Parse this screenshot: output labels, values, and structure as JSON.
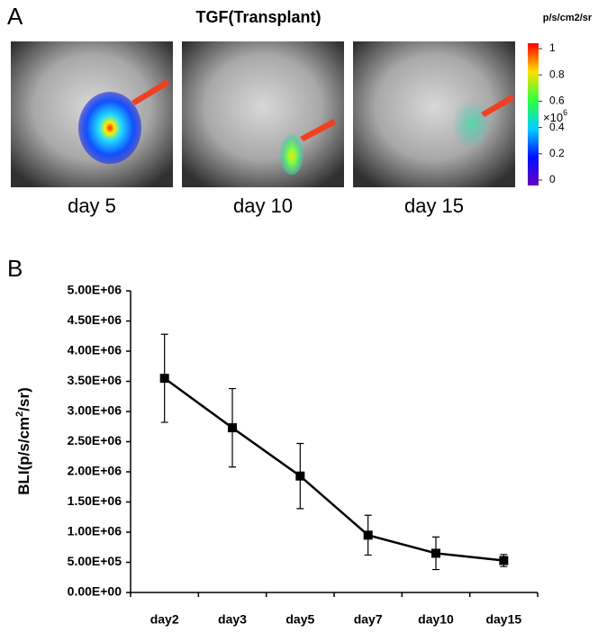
{
  "panel_a": {
    "label": "A",
    "title": "TGF(Transplant)",
    "captions": [
      "day 5",
      "day 10",
      "day 15"
    ],
    "colorbar": {
      "title": "p/s/cm2/sr",
      "lim": [
        0,
        1
      ],
      "ticks": [
        0,
        0.2,
        0.4,
        0.6,
        0.8,
        1
      ],
      "multiplier": "×10",
      "exponent": "6"
    }
  },
  "chart_data": {
    "type": "line",
    "label": "B",
    "y_label": [
      "BLI(p/s/cm",
      "2",
      "/sr)"
    ],
    "categories": [
      "day2",
      "day3",
      "day5",
      "day7",
      "day10",
      "day15"
    ],
    "values": [
      3550000,
      2730000,
      1930000,
      950000,
      650000,
      530000
    ],
    "errors": [
      730000,
      650000,
      540000,
      330000,
      270000,
      100000
    ],
    "color": "#000000",
    "marker": "square",
    "ylim": [
      0,
      5000000
    ],
    "yticks": [
      {
        "value": 0,
        "label": "0.00E+00"
      },
      {
        "value": 500000,
        "label": "5.00E+05"
      },
      {
        "value": 1000000,
        "label": "1.00E+06"
      },
      {
        "value": 1500000,
        "label": "1.50E+06"
      },
      {
        "value": 2000000,
        "label": "2.00E+06"
      },
      {
        "value": 2500000,
        "label": "2.50E+06"
      },
      {
        "value": 3000000,
        "label": "3.00E+06"
      },
      {
        "value": 3500000,
        "label": "3.50E+06"
      },
      {
        "value": 4000000,
        "label": "4.00E+06"
      },
      {
        "value": 4500000,
        "label": "4.50E+06"
      },
      {
        "value": 5000000,
        "label": "5.00E+06"
      }
    ]
  }
}
